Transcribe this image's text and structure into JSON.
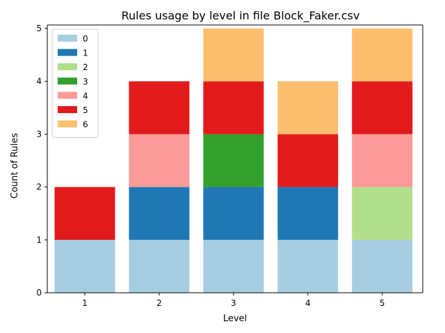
{
  "chart_data": {
    "type": "bar",
    "stacked": true,
    "title": "Rules usage by level in file Block_Faker.csv",
    "xlabel": "Level",
    "ylabel": "Count of Rules",
    "categories": [
      "1",
      "2",
      "3",
      "4",
      "5"
    ],
    "ylim": [
      0,
      5
    ],
    "yticks": [
      "0",
      "1",
      "2",
      "3",
      "4",
      "5"
    ],
    "legend_position": "top-left",
    "grid": false,
    "series": [
      {
        "name": "0",
        "color": "#a6cee3",
        "values": [
          1,
          1,
          1,
          1,
          1
        ]
      },
      {
        "name": "1",
        "color": "#1f78b4",
        "values": [
          0,
          1,
          1,
          1,
          0
        ]
      },
      {
        "name": "2",
        "color": "#b2df8a",
        "values": [
          0,
          0,
          0,
          0,
          1
        ]
      },
      {
        "name": "3",
        "color": "#33a02c",
        "values": [
          0,
          0,
          1,
          0,
          0
        ]
      },
      {
        "name": "4",
        "color": "#fb9a99",
        "values": [
          0,
          1,
          0,
          0,
          1
        ]
      },
      {
        "name": "5",
        "color": "#e31a1c",
        "values": [
          1,
          1,
          1,
          1,
          1
        ]
      },
      {
        "name": "6",
        "color": "#fdbf6f",
        "values": [
          0,
          0,
          1,
          1,
          1
        ]
      }
    ]
  }
}
